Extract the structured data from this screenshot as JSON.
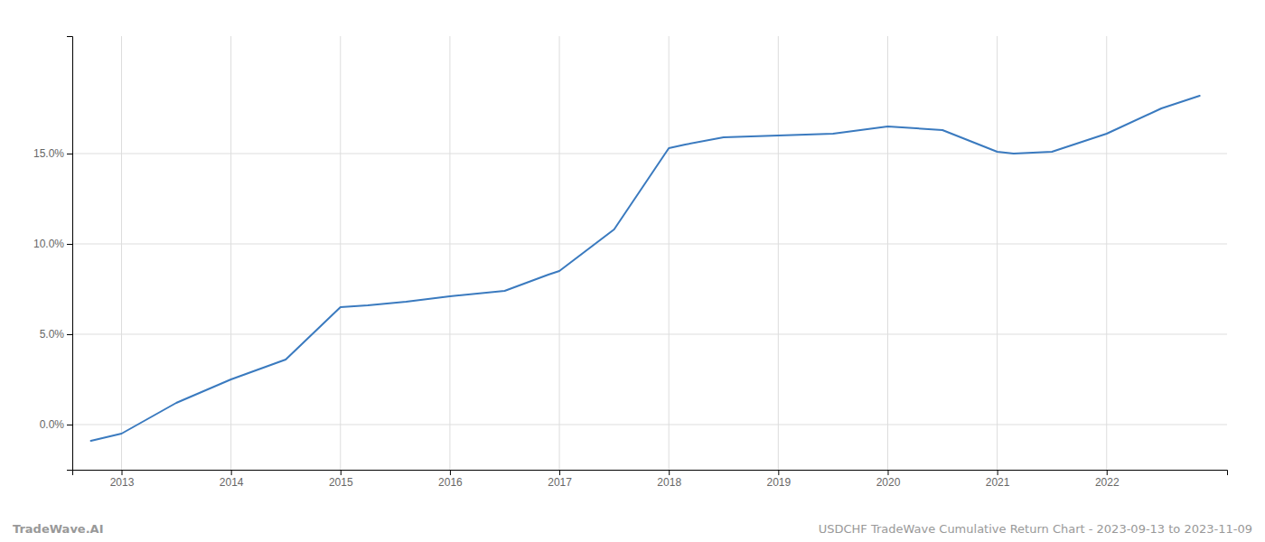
{
  "chart_data": {
    "type": "line",
    "x": [
      2012.72,
      2013.0,
      2013.5,
      2014.0,
      2014.5,
      2015.0,
      2015.25,
      2015.6,
      2016.0,
      2016.5,
      2016.9,
      2017.0,
      2017.5,
      2018.0,
      2018.15,
      2018.5,
      2019.0,
      2019.5,
      2020.0,
      2020.5,
      2021.0,
      2021.15,
      2021.5,
      2022.0,
      2022.5,
      2022.85
    ],
    "values": [
      -0.009,
      -0.005,
      0.012,
      0.025,
      0.036,
      0.065,
      0.066,
      0.068,
      0.071,
      0.074,
      0.083,
      0.085,
      0.108,
      0.153,
      0.155,
      0.159,
      0.16,
      0.161,
      0.165,
      0.163,
      0.151,
      0.15,
      0.151,
      0.161,
      0.175,
      0.182
    ],
    "color": "#3a7abf",
    "xlim": [
      2012.55,
      2023.1
    ],
    "ylim": [
      -0.025,
      0.215
    ],
    "xticks": [
      2013,
      2014,
      2015,
      2016,
      2017,
      2018,
      2019,
      2020,
      2021,
      2022
    ],
    "yticks": [
      {
        "value": 0.0,
        "label": "0.0%"
      },
      {
        "value": 0.05,
        "label": "5.0%"
      },
      {
        "value": 0.1,
        "label": "10.0%"
      },
      {
        "value": 0.15,
        "label": "15.0%"
      }
    ],
    "grid": true,
    "annotations": [
      "TradeWave.AI",
      "USDCHF TradeWave Cumulative Return Chart - 2023-09-13 to 2023-11-09"
    ]
  }
}
